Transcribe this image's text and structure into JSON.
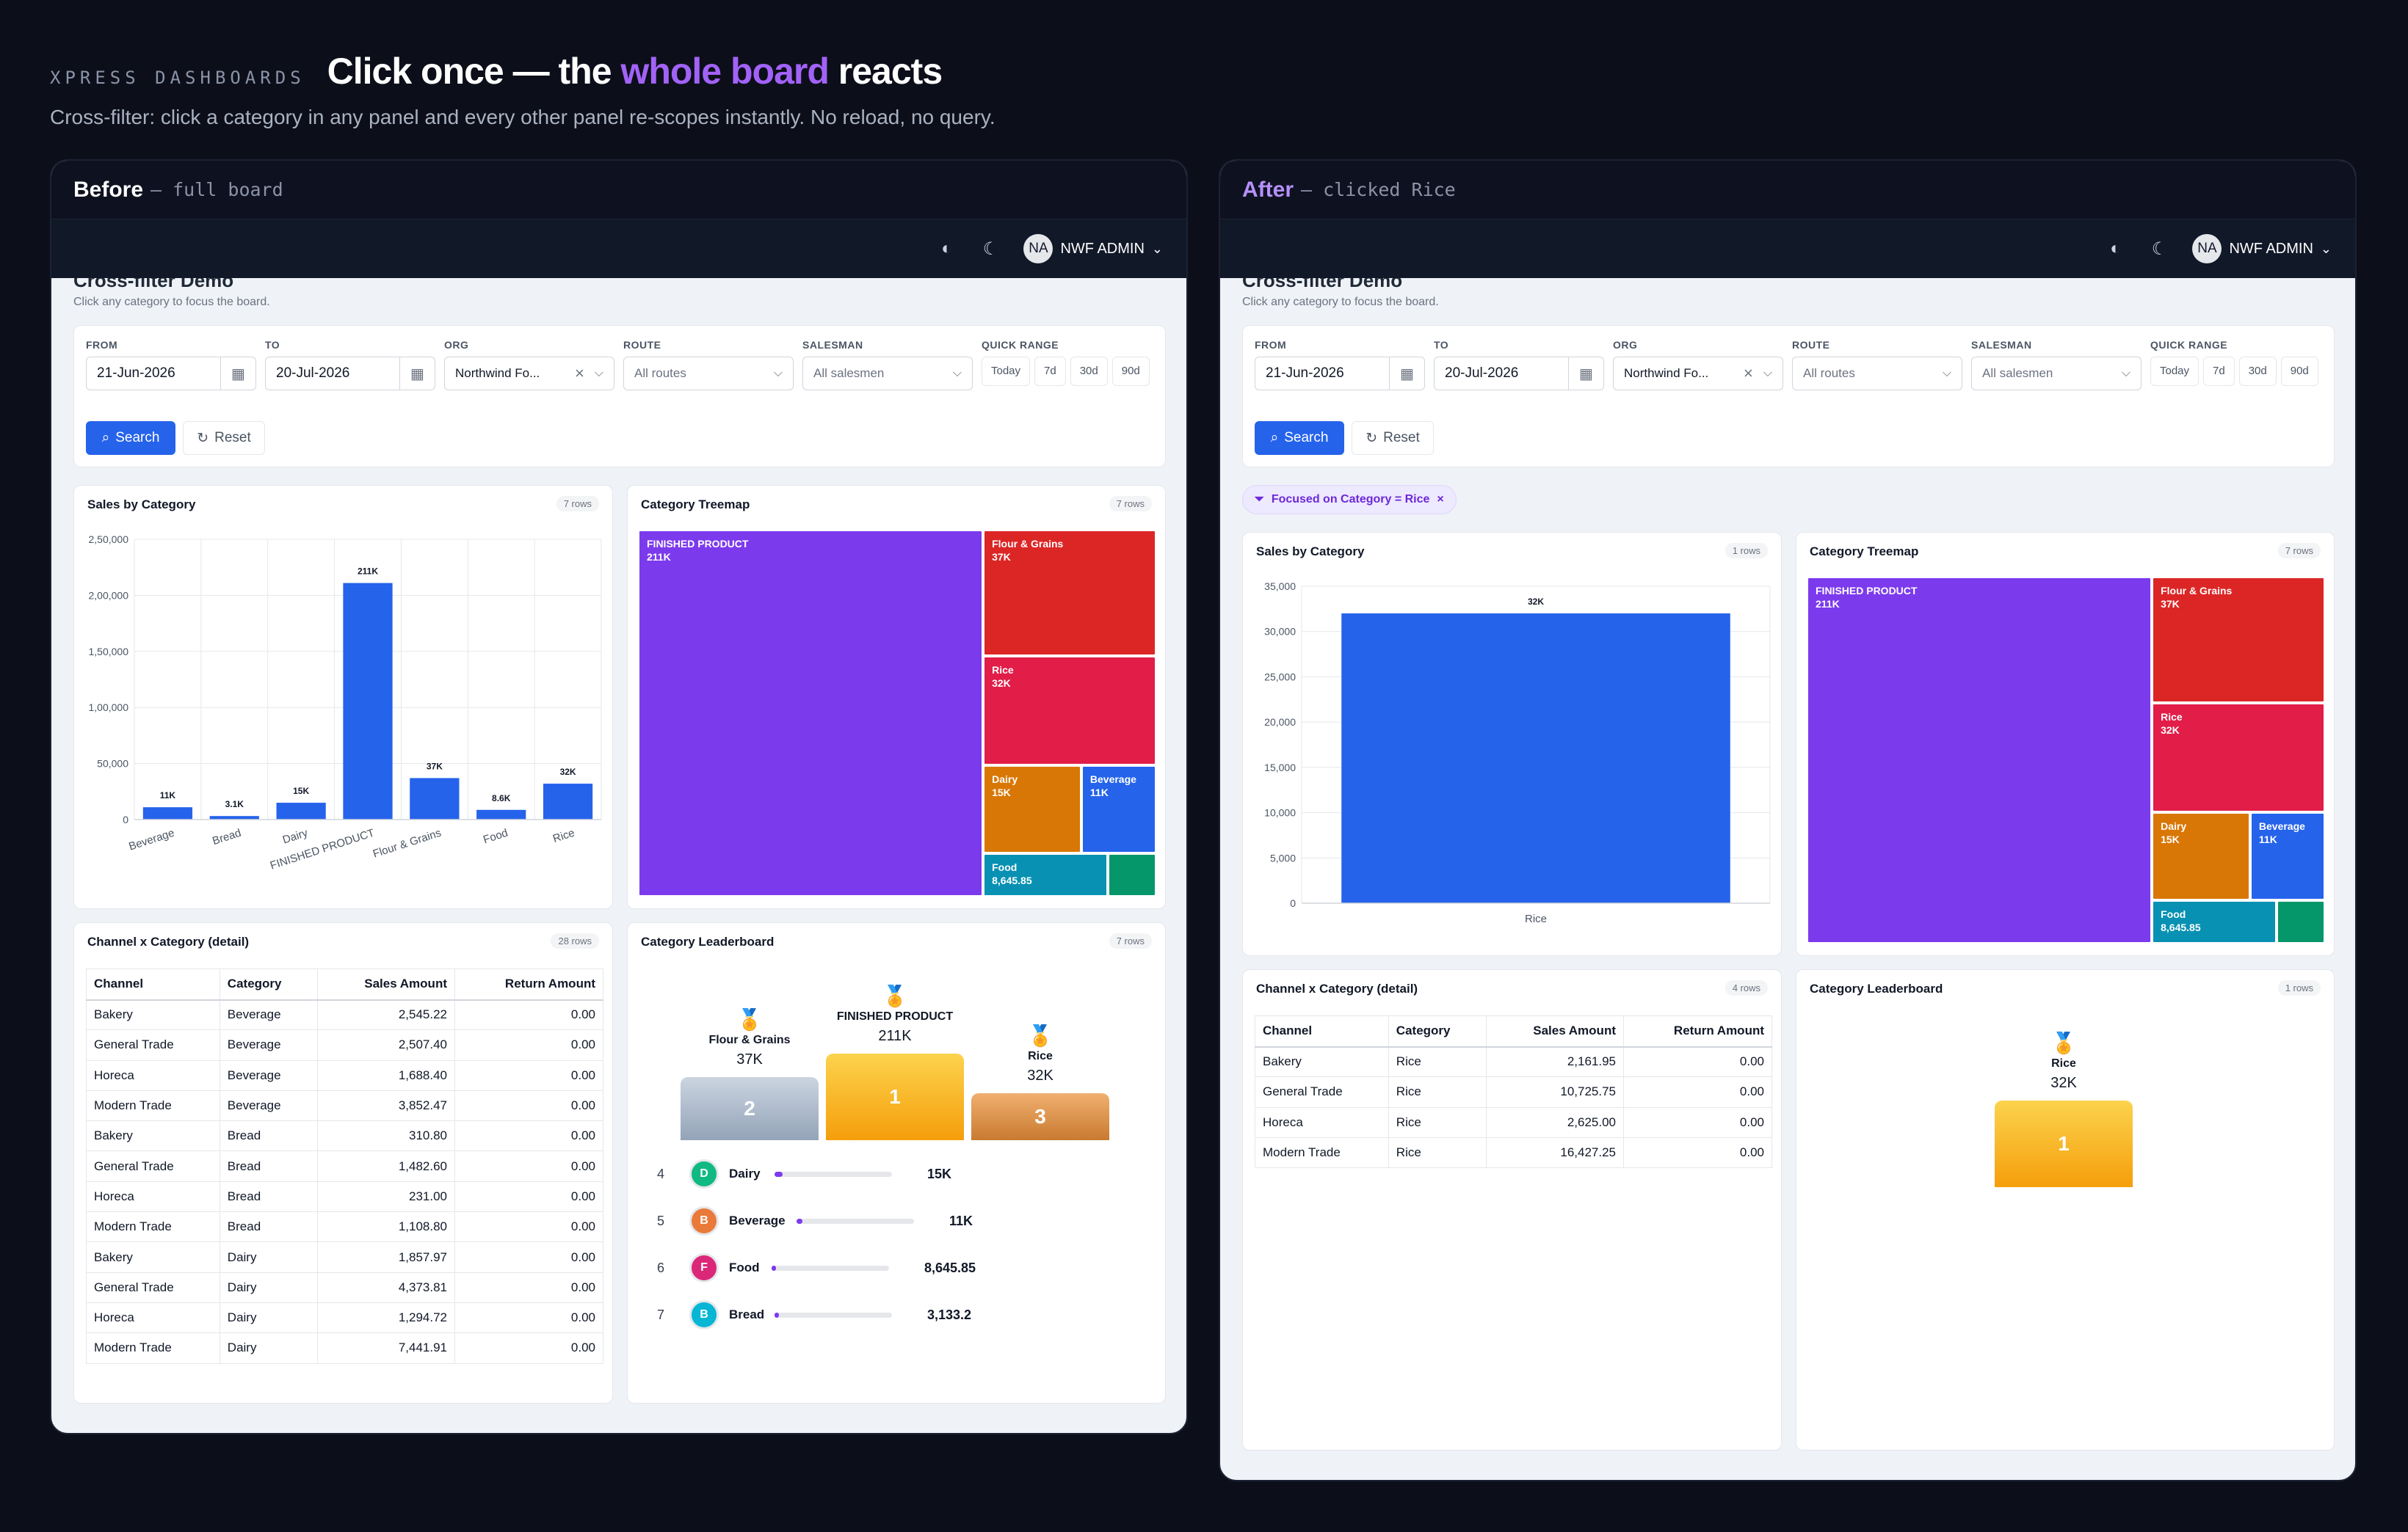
{
  "hero": {
    "brand": "XPRESS DASHBOARDS",
    "headline_pre": "Click once — the ",
    "headline_hl": "whole board",
    "headline_post": " reacts",
    "subline": "Cross-filter: click a category in any panel and every other panel re-scopes instantly. No reload, no query."
  },
  "app": {
    "user_initials": "NA",
    "user_name": "NWF ADMIN"
  },
  "page": {
    "title": "Cross-filter Demo",
    "subtitle": "Click any category to focus the board."
  },
  "filters": {
    "from_label": "FROM",
    "from_value": "21-Jun-2026",
    "to_label": "TO",
    "to_value": "20-Jul-2026",
    "org_label": "ORG",
    "org_value": "Northwind Fo...",
    "route_label": "ROUTE",
    "route_placeholder": "All routes",
    "salesman_label": "SALESMAN",
    "salesman_placeholder": "All salesmen",
    "quick_label": "QUICK RANGE",
    "quick": [
      "Today",
      "7d",
      "30d",
      "90d"
    ],
    "search_label": "Search",
    "reset_label": "Reset"
  },
  "colors": {
    "finished": "#7c3aed",
    "flour": "#dc2626",
    "rice": "#e11d48",
    "dairy": "#d97706",
    "beverage": "#2563eb",
    "food": "#0891b2",
    "bread": "#059669",
    "bar": "#2563eb"
  },
  "before": {
    "title": "Before",
    "subtitle": "— full board",
    "sales": {
      "title": "Sales by Category",
      "badge": "7 rows",
      "chart_data": {
        "type": "bar",
        "categories": [
          "Beverage",
          "Bread",
          "Dairy",
          "FINISHED PRODUCT",
          "Flour & Grains",
          "Food",
          "Rice"
        ],
        "values": [
          11000,
          3133.2,
          15000,
          211000,
          37000,
          8645.85,
          32000
        ],
        "data_labels": [
          "11K",
          "3.1K",
          "15K",
          "211K",
          "37K",
          "8.6K",
          "32K"
        ],
        "yticks": [
          "0",
          "50,000",
          "1,00,000",
          "1,50,000",
          "2,00,000",
          "2,50,000"
        ],
        "ylim": [
          0,
          250000
        ]
      }
    },
    "treemap": {
      "title": "Category Treemap",
      "badge": "7 rows",
      "chart_data": {
        "type": "treemap",
        "items": [
          {
            "name": "FINISHED PRODUCT",
            "label": "211K",
            "value": 211000
          },
          {
            "name": "Flour & Grains",
            "label": "37K",
            "value": 37000
          },
          {
            "name": "Rice",
            "label": "32K",
            "value": 32000
          },
          {
            "name": "Dairy",
            "label": "15K",
            "value": 15000
          },
          {
            "name": "Beverage",
            "label": "11K",
            "value": 11000
          },
          {
            "name": "Food",
            "label": "8,645.85",
            "value": 8645.85
          },
          {
            "name": "",
            "label": "",
            "value": 3133.2
          }
        ]
      }
    },
    "detail": {
      "title": "Channel x Category (detail)",
      "badge": "28 rows",
      "headers": [
        "Channel",
        "Category",
        "Sales Amount",
        "Return Amount"
      ],
      "rows": [
        [
          "Bakery",
          "Beverage",
          "2,545.22",
          "0.00"
        ],
        [
          "General Trade",
          "Beverage",
          "2,507.40",
          "0.00"
        ],
        [
          "Horeca",
          "Beverage",
          "1,688.40",
          "0.00"
        ],
        [
          "Modern Trade",
          "Beverage",
          "3,852.47",
          "0.00"
        ],
        [
          "Bakery",
          "Bread",
          "310.80",
          "0.00"
        ],
        [
          "General Trade",
          "Bread",
          "1,482.60",
          "0.00"
        ],
        [
          "Horeca",
          "Bread",
          "231.00",
          "0.00"
        ],
        [
          "Modern Trade",
          "Bread",
          "1,108.80",
          "0.00"
        ],
        [
          "Bakery",
          "Dairy",
          "1,857.97",
          "0.00"
        ],
        [
          "General Trade",
          "Dairy",
          "4,373.81",
          "0.00"
        ],
        [
          "Horeca",
          "Dairy",
          "1,294.72",
          "0.00"
        ],
        [
          "Modern Trade",
          "Dairy",
          "7,441.91",
          "0.00"
        ]
      ]
    },
    "leaderboard": {
      "title": "Category Leaderboard",
      "badge": "7 rows",
      "podium": [
        {
          "rank": "2",
          "name": "Flour & Grains",
          "value": "37K"
        },
        {
          "rank": "1",
          "name": "FINISHED PRODUCT",
          "value": "211K"
        },
        {
          "rank": "3",
          "name": "Rice",
          "value": "32K"
        }
      ],
      "list": [
        {
          "rank": "4",
          "initial": "D",
          "name": "Dairy",
          "value": "15K",
          "share": 0.07
        },
        {
          "rank": "5",
          "initial": "B",
          "name": "Beverage",
          "value": "11K",
          "share": 0.05
        },
        {
          "rank": "6",
          "initial": "F",
          "name": "Food",
          "value": "8,645.85",
          "share": 0.04
        },
        {
          "rank": "7",
          "initial": "B",
          "name": "Bread",
          "value": "3,133.2",
          "share": 0.015
        }
      ]
    }
  },
  "after": {
    "title": "After",
    "subtitle": "— clicked Rice",
    "chip": "Focused on Category = Rice",
    "sales": {
      "title": "Sales by Category",
      "badge": "1 rows",
      "chart_data": {
        "type": "bar",
        "categories": [
          "Rice"
        ],
        "values": [
          32000
        ],
        "data_labels": [
          "32K"
        ],
        "yticks": [
          "0",
          "5,000",
          "10,000",
          "15,000",
          "20,000",
          "25,000",
          "30,000",
          "35,000"
        ],
        "ylim": [
          0,
          35000
        ]
      }
    },
    "treemap": {
      "title": "Category Treemap",
      "badge": "7 rows"
    },
    "detail": {
      "title": "Channel x Category (detail)",
      "badge": "4 rows",
      "headers": [
        "Channel",
        "Category",
        "Sales Amount",
        "Return Amount"
      ],
      "rows": [
        [
          "Bakery",
          "Rice",
          "2,161.95",
          "0.00"
        ],
        [
          "General Trade",
          "Rice",
          "10,725.75",
          "0.00"
        ],
        [
          "Horeca",
          "Rice",
          "2,625.00",
          "0.00"
        ],
        [
          "Modern Trade",
          "Rice",
          "16,427.25",
          "0.00"
        ]
      ]
    },
    "leaderboard": {
      "title": "Category Leaderboard",
      "badge": "1 rows",
      "podium": [
        {
          "rank": "1",
          "name": "Rice",
          "value": "32K"
        }
      ]
    }
  }
}
